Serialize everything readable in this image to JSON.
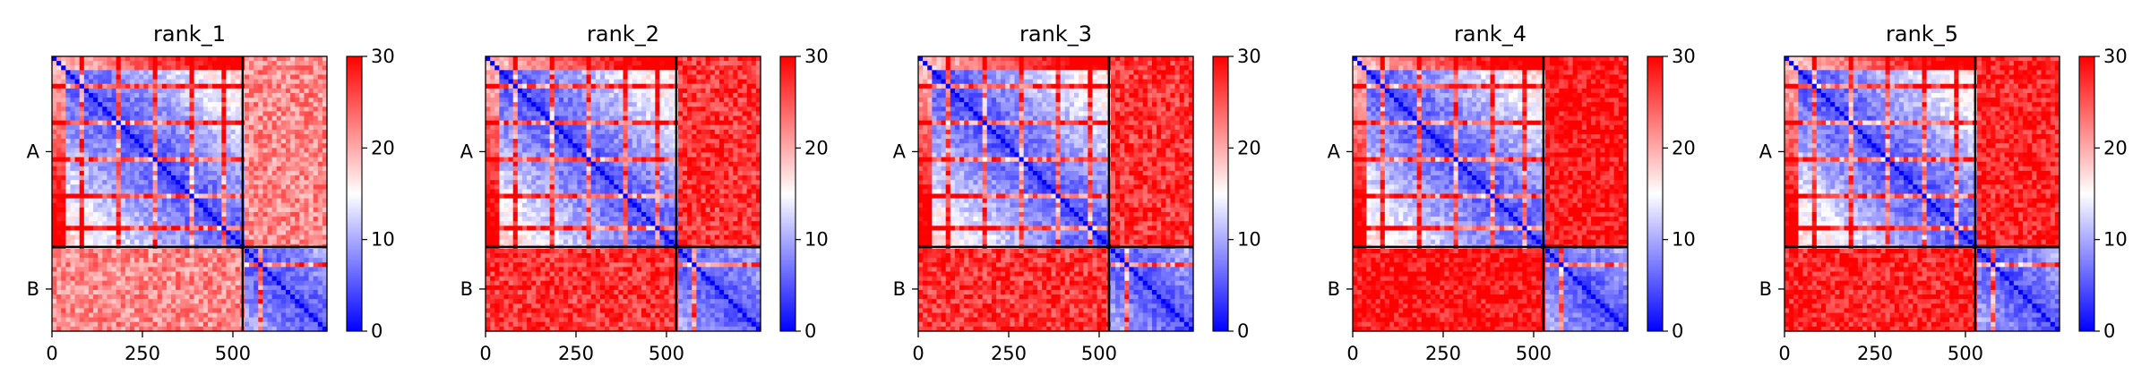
{
  "chart_data": [
    {
      "type": "heatmap",
      "title": "rank_1",
      "chain_labels": [
        "A",
        "B"
      ],
      "chain_boundary": 527,
      "total_length": 760,
      "x_ticks": [
        0,
        250,
        500
      ],
      "colorbar": {
        "min": 0,
        "max": 30,
        "ticks": [
          0,
          10,
          20,
          30
        ],
        "colormap": "bwr"
      },
      "inter_chain_mean_value": 22
    },
    {
      "type": "heatmap",
      "title": "rank_2",
      "chain_labels": [
        "A",
        "B"
      ],
      "chain_boundary": 527,
      "total_length": 760,
      "x_ticks": [
        0,
        250,
        500
      ],
      "colorbar": {
        "min": 0,
        "max": 30,
        "ticks": [
          0,
          10,
          20,
          30
        ],
        "colormap": "bwr"
      },
      "inter_chain_mean_value": 27
    },
    {
      "type": "heatmap",
      "title": "rank_3",
      "chain_labels": [
        "A",
        "B"
      ],
      "chain_boundary": 527,
      "total_length": 760,
      "x_ticks": [
        0,
        250,
        500
      ],
      "colorbar": {
        "min": 0,
        "max": 30,
        "ticks": [
          0,
          10,
          20,
          30
        ],
        "colormap": "bwr"
      },
      "inter_chain_mean_value": 27
    },
    {
      "type": "heatmap",
      "title": "rank_4",
      "chain_labels": [
        "A",
        "B"
      ],
      "chain_boundary": 527,
      "total_length": 760,
      "x_ticks": [
        0,
        250,
        500
      ],
      "colorbar": {
        "min": 0,
        "max": 30,
        "ticks": [
          0,
          10,
          20,
          30
        ],
        "colormap": "bwr"
      },
      "inter_chain_mean_value": 29
    },
    {
      "type": "heatmap",
      "title": "rank_5",
      "chain_labels": [
        "A",
        "B"
      ],
      "chain_boundary": 527,
      "total_length": 760,
      "x_ticks": [
        0,
        250,
        500
      ],
      "colorbar": {
        "min": 0,
        "max": 30,
        "ticks": [
          0,
          10,
          20,
          30
        ],
        "colormap": "bwr"
      },
      "inter_chain_mean_value": 28
    }
  ]
}
